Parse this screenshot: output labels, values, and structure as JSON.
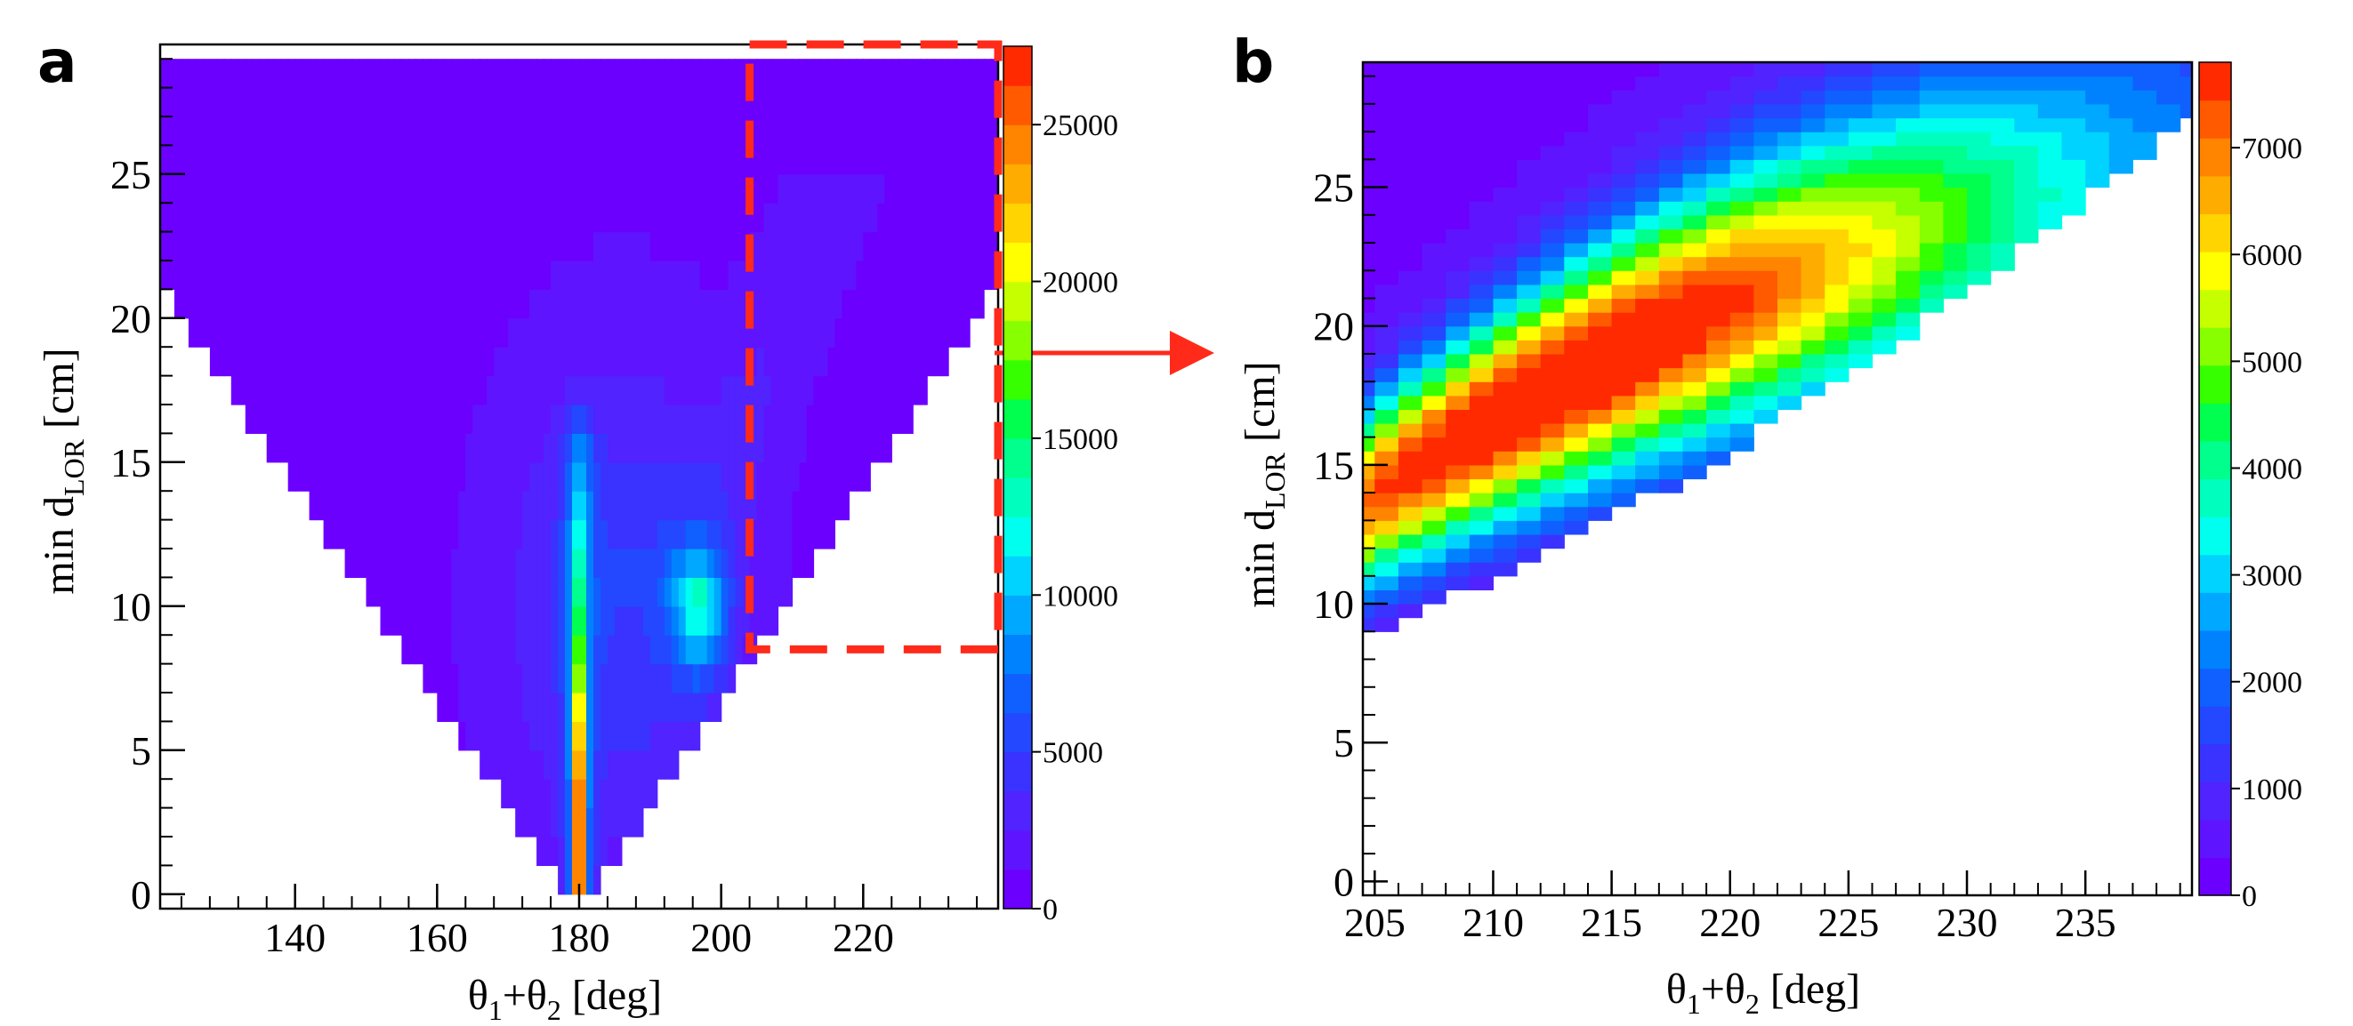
{
  "chart_data": [
    {
      "panel": "a",
      "type": "heatmap",
      "title": "",
      "xlabel": {
        "main": "θ",
        "sub1": "1",
        "mid": "+θ",
        "sub2": "2",
        "unit": " [deg]"
      },
      "ylabel": {
        "main": "min d",
        "sub": "LOR",
        "unit": " [cm]"
      },
      "xlim": [
        121,
        239
      ],
      "ylim": [
        -0.5,
        29.5
      ],
      "xticks": [
        140,
        160,
        180,
        200,
        220
      ],
      "yticks": [
        0,
        5,
        10,
        15,
        20,
        25
      ],
      "colorbar": {
        "min": 0,
        "max": 27500,
        "levels": 22,
        "ticks": [
          0,
          5000,
          10000,
          15000,
          20000,
          25000
        ]
      },
      "palette": [
        "#6b00ff",
        "#5f14ff",
        "#5023ff",
        "#3a33ff",
        "#2448ff",
        "#1060ff",
        "#0082ff",
        "#00a8ff",
        "#00d3ff",
        "#00ffee",
        "#00ffbe",
        "#00ff8c",
        "#00ff4e",
        "#36ff00",
        "#88ff00",
        "#c6ff00",
        "#ffff00",
        "#ffd400",
        "#ffac00",
        "#ff8400",
        "#ff5a00",
        "#ff2a00"
      ],
      "features": [
        {
          "name": "central vertical band",
          "x": 180,
          "y_range": [
            0,
            15
          ],
          "peak_value": 26000
        },
        {
          "name": "side blob",
          "x": 197,
          "y": 9.8,
          "peak_value": 10500
        }
      ],
      "selection_box": {
        "x_range": [
          204,
          239
        ],
        "y_range": [
          8.5,
          29.5
        ],
        "color": "#ff2a1a"
      }
    },
    {
      "panel": "b",
      "type": "heatmap",
      "title": "",
      "xlabel": {
        "main": "θ",
        "sub1": "1",
        "mid": "+θ",
        "sub2": "2",
        "unit": " [deg]"
      },
      "ylabel": {
        "main": "min d",
        "sub": "LOR",
        "unit": " [cm]"
      },
      "xlim": [
        204.5,
        239.5
      ],
      "ylim": [
        -0.5,
        29.5
      ],
      "xticks": [
        205,
        210,
        215,
        220,
        225,
        230,
        235
      ],
      "yticks": [
        0,
        5,
        10,
        15,
        20,
        25
      ],
      "colorbar": {
        "min": 0,
        "max": 7800,
        "levels": 22,
        "ticks": [
          0,
          1000,
          2000,
          3000,
          4000,
          5000,
          6000,
          7000
        ]
      },
      "palette": [
        "#6b00ff",
        "#5f14ff",
        "#5023ff",
        "#3a33ff",
        "#2448ff",
        "#1060ff",
        "#0082ff",
        "#00a8ff",
        "#00d3ff",
        "#00ffee",
        "#00ffbe",
        "#00ff8c",
        "#00ff4e",
        "#36ff00",
        "#88ff00",
        "#c6ff00",
        "#ffff00",
        "#ffd400",
        "#ffac00",
        "#ff8400",
        "#ff5a00",
        "#ff2a00"
      ],
      "features": [
        {
          "name": "diagonal ridge",
          "from": [
            205,
            14
          ],
          "to": [
            236,
            25
          ],
          "peak_value": 7600
        }
      ]
    }
  ],
  "panels": {
    "a": "a",
    "b": "b"
  },
  "arrow_color": "#ff2a1a"
}
